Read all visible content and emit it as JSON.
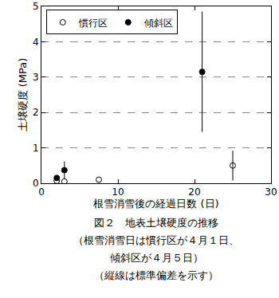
{
  "chart_data": {
    "type": "scatter",
    "xlabel": "根雪消雪後の経過日数 (日)",
    "ylabel": "土壌硬度 (MPa)",
    "caption": [
      "図２　地表土壌硬度の推移",
      "（根雪消雪日は慣行区が４月１日、",
      "傾斜区が４月５日）",
      "（縦線は標準偏差を示す）"
    ],
    "xlim": [
      0,
      30
    ],
    "xticks": [
      0,
      10,
      20,
      30
    ],
    "ylim": [
      0,
      5
    ],
    "yticks": [
      0,
      1,
      2,
      3,
      4,
      5
    ],
    "grid": "y",
    "legend": "top-left",
    "series": [
      {
        "name": "慣行区",
        "color": "#000000",
        "marker": "circle-open",
        "x": [
          2,
          3,
          7.5,
          25
        ],
        "values": [
          0.07,
          0.05,
          0.1,
          0.5
        ],
        "errors": [
          0,
          0,
          0,
          0.42
        ]
      },
      {
        "name": "傾斜区",
        "color": "#000000",
        "marker": "circle",
        "x": [
          2,
          3,
          21
        ],
        "values": [
          0.15,
          0.37,
          3.15
        ],
        "errors": [
          0.04,
          0.25,
          1.7
        ]
      }
    ]
  }
}
